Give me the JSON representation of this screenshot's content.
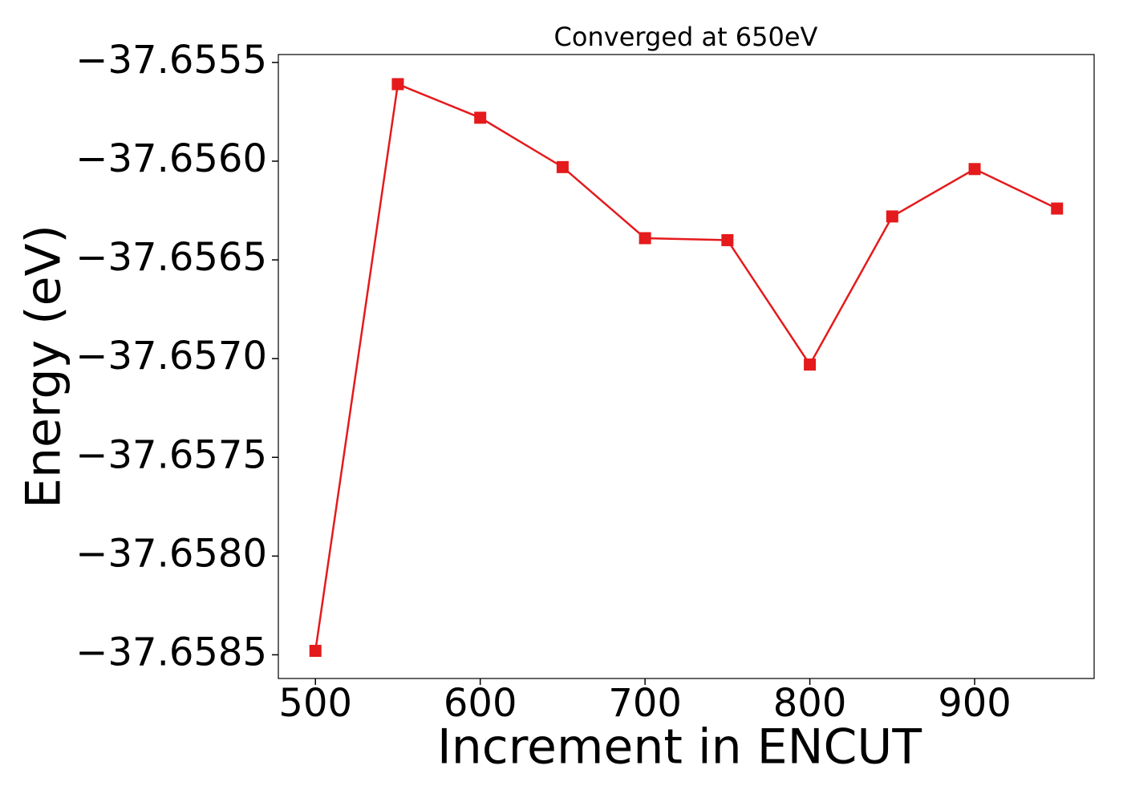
{
  "chart_data": {
    "type": "line",
    "title": "Converged at 650eV",
    "xlabel": "Increment in ENCUT",
    "ylabel": "Energy (eV)",
    "x": [
      500,
      550,
      600,
      650,
      700,
      750,
      800,
      850,
      900,
      950
    ],
    "values": [
      -37.65848,
      -37.65561,
      -37.65578,
      -37.65603,
      -37.65639,
      -37.6564,
      -37.65703,
      -37.65628,
      -37.65604,
      -37.65624
    ],
    "color": "#e41a1c",
    "marker": "square",
    "xlim": [
      477.5,
      972.5
    ],
    "ylim": [
      -37.65862,
      -37.65546
    ],
    "xticks": [
      500,
      600,
      700,
      800,
      900
    ],
    "yticks": [
      {
        "value": -37.6555,
        "label": "−37.6555"
      },
      {
        "value": -37.656,
        "label": "−37.6560"
      },
      {
        "value": -37.6565,
        "label": "−37.6565"
      },
      {
        "value": -37.657,
        "label": "−37.6570"
      },
      {
        "value": -37.6575,
        "label": "−37.6575"
      },
      {
        "value": -37.658,
        "label": "−37.6580"
      },
      {
        "value": -37.6585,
        "label": "−37.6585"
      }
    ],
    "grid": false
  }
}
